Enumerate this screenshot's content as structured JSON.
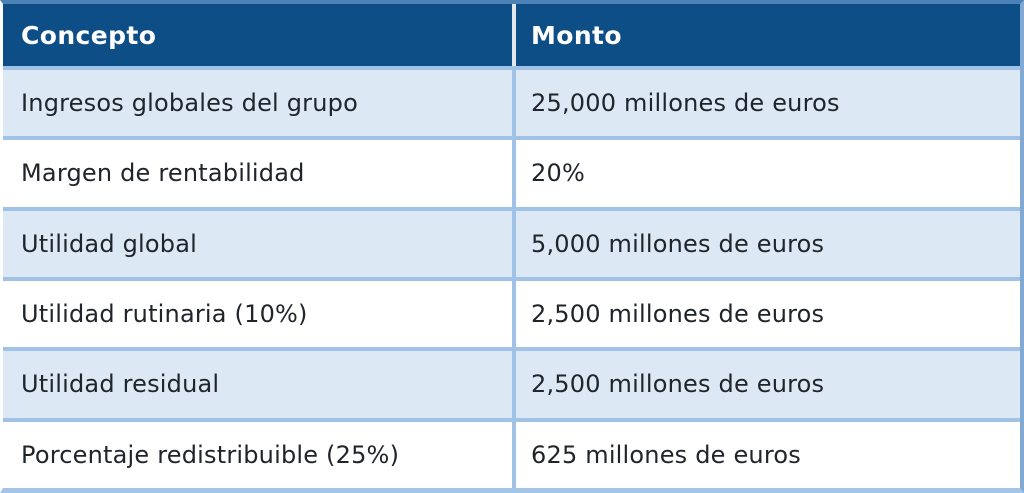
{
  "colors": {
    "header_bg": "#0e4e87",
    "header_text": "#ffffff",
    "row_alt_bg": "#dde8f5",
    "row_plain_bg": "#ffffff",
    "divider_blue": "#a0c2e6",
    "outer_top_border": "#4d82b6",
    "body_text": "#20242b"
  },
  "table": {
    "headers": [
      "Concepto",
      "Monto"
    ],
    "rows": [
      {
        "concepto": "Ingresos globales del grupo",
        "monto": "25,000 millones de euros"
      },
      {
        "concepto": "Margen de rentabilidad",
        "monto": "20%"
      },
      {
        "concepto": "Utilidad global",
        "monto": "5,000 millones de euros"
      },
      {
        "concepto": "Utilidad rutinaria (10%)",
        "monto": "2,500 millones de euros"
      },
      {
        "concepto": "Utilidad residual",
        "monto": "2,500 millones de euros"
      },
      {
        "concepto": "Porcentaje redistribuible (25%)",
        "monto": "625 millones de euros"
      }
    ]
  },
  "chart_data": {
    "type": "table",
    "columns": [
      "Concepto",
      "Monto"
    ],
    "rows": [
      [
        "Ingresos globales del grupo",
        "25,000 millones de euros"
      ],
      [
        "Margen de rentabilidad",
        "20%"
      ],
      [
        "Utilidad global",
        "5,000 millones de euros"
      ],
      [
        "Utilidad rutinaria (10%)",
        "2,500 millones de euros"
      ],
      [
        "Utilidad residual",
        "2,500 millones de euros"
      ],
      [
        "Porcentaje redistribuible (25%)",
        "625 millones de euros"
      ]
    ]
  }
}
